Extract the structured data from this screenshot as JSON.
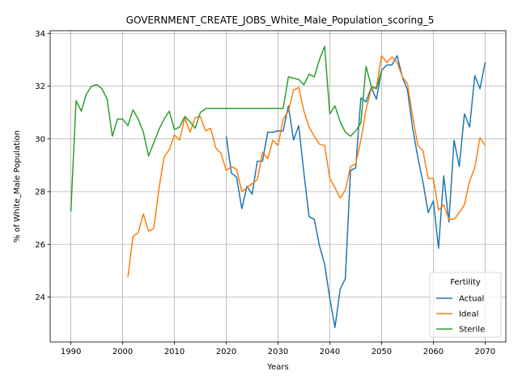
{
  "chart_data": {
    "type": "line",
    "title": "GOVERNMENT_CREATE_JOBS_White_Male_Population_scoring_5",
    "xlabel": "Years",
    "ylabel": "% of White_Male Population",
    "xlim": [
      1986,
      2074
    ],
    "ylim": [
      22.3,
      34.1
    ],
    "xticks": [
      1990,
      2000,
      2010,
      2020,
      2030,
      2040,
      2050,
      2060,
      2070
    ],
    "yticks": [
      24,
      26,
      28,
      30,
      32,
      34
    ],
    "grid": true,
    "legend": {
      "title": "Fertility",
      "placement": "lower right"
    },
    "series": [
      {
        "name": "Actual",
        "color": "#1f77b4",
        "x": [
          2020,
          2021,
          2022,
          2023,
          2024,
          2025,
          2026,
          2027,
          2028,
          2029,
          2030,
          2031,
          2032,
          2033,
          2034,
          2035,
          2036,
          2037,
          2038,
          2039,
          2040,
          2041,
          2042,
          2043,
          2044,
          2045,
          2046,
          2047,
          2048,
          2049,
          2050,
          2051,
          2052,
          2053,
          2054,
          2055,
          2056,
          2057,
          2058,
          2059,
          2060,
          2061,
          2062,
          2063,
          2064,
          2065,
          2066,
          2067,
          2068,
          2069,
          2070
        ],
        "values": [
          30.1,
          28.7,
          28.55,
          27.35,
          28.2,
          27.9,
          29.15,
          29.15,
          30.25,
          30.25,
          30.3,
          30.3,
          31.25,
          29.95,
          30.5,
          28.7,
          27.05,
          26.95,
          25.95,
          25.25,
          23.95,
          22.85,
          24.3,
          24.7,
          28.8,
          28.9,
          31.55,
          31.4,
          31.95,
          31.5,
          32.6,
          32.8,
          32.8,
          33.15,
          32.35,
          31.85,
          30.4,
          29.3,
          28.35,
          27.2,
          27.65,
          25.85,
          28.6,
          26.85,
          29.95,
          28.95,
          30.95,
          30.45,
          32.4,
          31.9,
          32.9
        ]
      },
      {
        "name": "Ideal",
        "color": "#ff7f0e",
        "x": [
          2001,
          2002,
          2003,
          2004,
          2005,
          2006,
          2007,
          2008,
          2009,
          2010,
          2011,
          2012,
          2013,
          2014,
          2015,
          2016,
          2017,
          2018,
          2019,
          2020,
          2021,
          2022,
          2023,
          2024,
          2025,
          2026,
          2027,
          2028,
          2029,
          2030,
          2031,
          2032,
          2033,
          2034,
          2035,
          2036,
          2037,
          2038,
          2039,
          2040,
          2041,
          2042,
          2043,
          2044,
          2045,
          2046,
          2047,
          2048,
          2049,
          2050,
          2051,
          2052,
          2053,
          2054,
          2055,
          2056,
          2057,
          2058,
          2059,
          2060,
          2061,
          2062,
          2063,
          2064,
          2065,
          2066,
          2067,
          2068,
          2069,
          2070
        ],
        "values": [
          24.75,
          26.3,
          26.45,
          27.15,
          26.5,
          26.6,
          28.1,
          29.3,
          29.6,
          30.15,
          29.95,
          30.8,
          30.25,
          30.8,
          30.85,
          30.3,
          30.4,
          29.65,
          29.45,
          28.8,
          28.95,
          28.85,
          28.0,
          28.15,
          28.3,
          28.45,
          29.5,
          29.25,
          29.95,
          29.75,
          30.75,
          31.05,
          31.85,
          31.95,
          31.05,
          30.45,
          30.1,
          29.8,
          29.75,
          28.5,
          28.15,
          27.75,
          28.05,
          28.95,
          29.05,
          29.95,
          31.1,
          31.9,
          31.95,
          33.15,
          32.9,
          33.1,
          32.9,
          32.35,
          32.1,
          30.85,
          29.75,
          29.55,
          28.5,
          28.5,
          27.3,
          27.5,
          26.95,
          26.95,
          27.2,
          27.5,
          28.4,
          28.9,
          30.05,
          29.75
        ]
      },
      {
        "name": "Sterile",
        "color": "#2ca02c",
        "x": [
          1990,
          1991,
          1992,
          1993,
          1994,
          1995,
          1996,
          1997,
          1998,
          1999,
          2000,
          2001,
          2002,
          2003,
          2004,
          2005,
          2006,
          2007,
          2008,
          2009,
          2010,
          2011,
          2012,
          2013,
          2014,
          2015,
          2016,
          2017,
          2018,
          2019,
          2020,
          2021,
          2022,
          2023,
          2024,
          2025,
          2026,
          2027,
          2028,
          2029,
          2030,
          2031,
          2032,
          2033,
          2034,
          2035,
          2036,
          2037,
          2038,
          2039,
          2040,
          2041,
          2042,
          2043,
          2044,
          2045,
          2046,
          2047,
          2048,
          2049,
          2050
        ],
        "values": [
          27.25,
          31.45,
          31.05,
          31.7,
          32.0,
          32.05,
          31.9,
          31.5,
          30.1,
          30.75,
          30.75,
          30.5,
          31.1,
          30.75,
          30.25,
          29.35,
          29.85,
          30.35,
          30.75,
          31.05,
          30.35,
          30.45,
          30.85,
          30.65,
          30.4,
          31.0,
          31.15,
          31.15,
          31.15,
          31.15,
          31.15,
          31.15,
          31.15,
          31.15,
          31.15,
          31.15,
          31.15,
          31.15,
          31.15,
          31.15,
          31.15,
          31.15,
          32.35,
          32.3,
          32.25,
          32.05,
          32.45,
          32.35,
          33.0,
          33.5,
          30.95,
          31.25,
          30.65,
          30.25,
          30.1,
          30.3,
          30.6,
          32.75,
          32.0,
          31.9,
          32.6
        ]
      }
    ]
  }
}
